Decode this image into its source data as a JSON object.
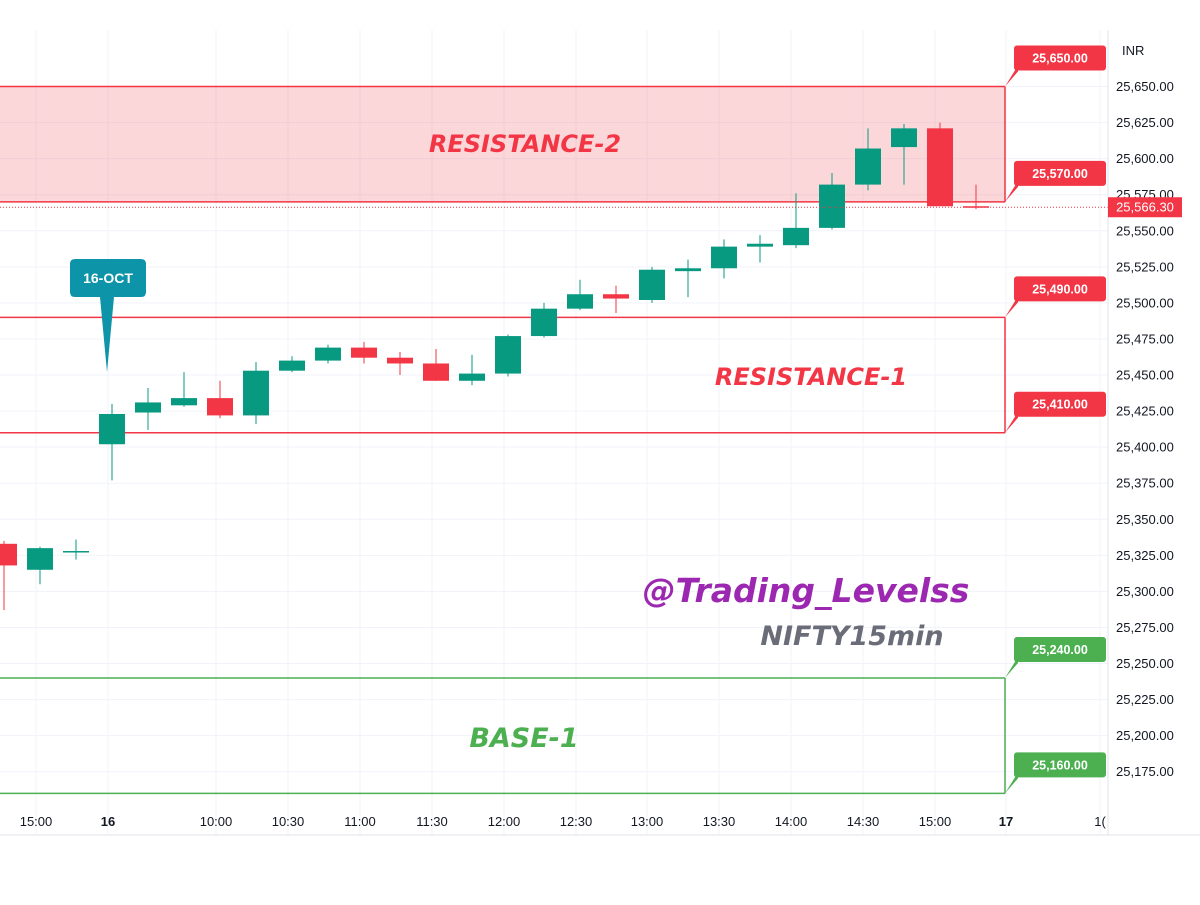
{
  "chart_data": {
    "type": "candlestick",
    "currency": "INR",
    "y_range": [
      25155,
      25665
    ],
    "y_ticks": [
      "25,175.00",
      "25,200.00",
      "25,225.00",
      "25,250.00",
      "25,275.00",
      "25,300.00",
      "25,325.00",
      "25,350.00",
      "25,375.00",
      "25,400.00",
      "25,425.00",
      "25,450.00",
      "25,475.00",
      "25,500.00",
      "25,525.00",
      "25,550.00",
      "25,575.00",
      "25,600.00",
      "25,625.00",
      "25,650.00"
    ],
    "x_labels": [
      "15:00",
      "16",
      "10:00",
      "10:30",
      "11:00",
      "11:30",
      "12:00",
      "12:30",
      "13:00",
      "13:30",
      "14:00",
      "14:30",
      "15:00",
      "17",
      "1("
    ],
    "last_price": {
      "value": 25566.3,
      "label": "25,566.30",
      "color": "#f23645"
    },
    "zones": [
      {
        "name": "RESISTANCE-2",
        "top": 25650,
        "bottom": 25570,
        "top_label": "25,650.00",
        "bottom_label": "25,570.00",
        "color": "#f23645",
        "filled": true
      },
      {
        "name": "RESISTANCE-1",
        "top": 25490,
        "bottom": 25410,
        "top_label": "25,490.00",
        "bottom_label": "25,410.00",
        "color": "#f23645",
        "filled": false
      },
      {
        "name": "BASE-1",
        "top": 25240,
        "bottom": 25160,
        "top_label": "25,240.00",
        "bottom_label": "25,160.00",
        "color": "#4caf50",
        "filled": false
      }
    ],
    "callout": {
      "text": "16-OCT",
      "color": "#0d94a8"
    },
    "watermark": {
      "handle": "@Trading_Levelss",
      "handle_color": "#9c27b0",
      "symbol": "NIFTY15min",
      "symbol_color": "#6a6d78"
    },
    "up_color": "#089981",
    "down_color": "#f23645",
    "candles": [
      {
        "o": 25333,
        "h": 25335,
        "l": 25287,
        "c": 25318
      },
      {
        "o": 25315,
        "h": 25331,
        "l": 25305,
        "c": 25330
      },
      {
        "o": 25327,
        "h": 25336,
        "l": 25322,
        "c": 25328
      },
      {
        "o": 25402,
        "h": 25430,
        "l": 25377,
        "c": 25423
      },
      {
        "o": 25424,
        "h": 25441,
        "l": 25412,
        "c": 25431
      },
      {
        "o": 25429,
        "h": 25452,
        "l": 25428,
        "c": 25434
      },
      {
        "o": 25434,
        "h": 25446,
        "l": 25420,
        "c": 25422
      },
      {
        "o": 25422,
        "h": 25459,
        "l": 25416,
        "c": 25453
      },
      {
        "o": 25453,
        "h": 25463,
        "l": 25452,
        "c": 25460
      },
      {
        "o": 25460,
        "h": 25471,
        "l": 25458,
        "c": 25469
      },
      {
        "o": 25469,
        "h": 25473,
        "l": 25458,
        "c": 25462
      },
      {
        "o": 25462,
        "h": 25466,
        "l": 25450,
        "c": 25458
      },
      {
        "o": 25458,
        "h": 25468,
        "l": 25446,
        "c": 25446
      },
      {
        "o": 25446,
        "h": 25464,
        "l": 25443,
        "c": 25451
      },
      {
        "o": 25451,
        "h": 25478,
        "l": 25449,
        "c": 25477
      },
      {
        "o": 25477,
        "h": 25500,
        "l": 25476,
        "c": 25496
      },
      {
        "o": 25496,
        "h": 25516,
        "l": 25495,
        "c": 25506
      },
      {
        "o": 25506,
        "h": 25512,
        "l": 25493,
        "c": 25503
      },
      {
        "o": 25502,
        "h": 25525,
        "l": 25500,
        "c": 25523
      },
      {
        "o": 25522,
        "h": 25530,
        "l": 25504,
        "c": 25524
      },
      {
        "o": 25524,
        "h": 25544,
        "l": 25517,
        "c": 25539
      },
      {
        "o": 25539,
        "h": 25547,
        "l": 25528,
        "c": 25541
      },
      {
        "o": 25540,
        "h": 25576,
        "l": 25538,
        "c": 25552
      },
      {
        "o": 25552,
        "h": 25590,
        "l": 25551,
        "c": 25582
      },
      {
        "o": 25582,
        "h": 25621,
        "l": 25578,
        "c": 25607
      },
      {
        "o": 25608,
        "h": 25624,
        "l": 25582,
        "c": 25621
      },
      {
        "o": 25621,
        "h": 25625,
        "l": 25568,
        "c": 25567
      },
      {
        "o": 25567,
        "h": 25582,
        "l": 25565,
        "c": 25566
      }
    ]
  }
}
